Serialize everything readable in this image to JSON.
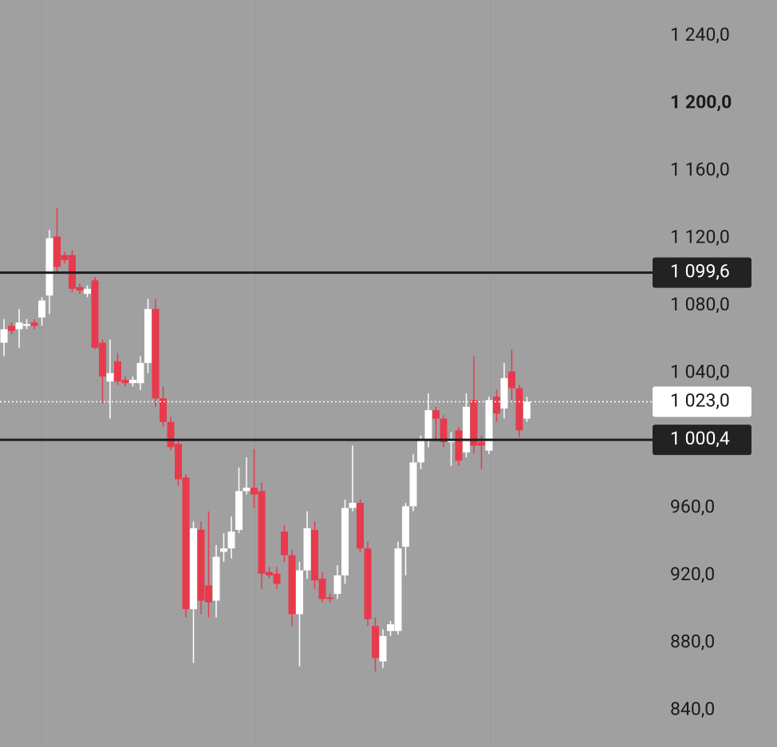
{
  "chart_data": {
    "type": "candlestick",
    "open": [
      1058,
      1068,
      1066,
      1068,
      1070,
      1073,
      1086,
      1121,
      1110,
      1110,
      1091,
      1087,
      1095,
      1058,
      1035,
      1047,
      1036,
      1034,
      1034,
      1046,
      1078,
      1025,
      1011,
      998,
      978,
      900,
      947,
      914,
      905,
      934,
      936,
      947,
      970,
      972,
      970,
      922,
      921,
      946,
      932,
      897,
      923,
      947,
      918,
      907,
      909,
      920,
      960,
      963,
      936,
      890,
      869,
      887,
      887,
      937,
      961,
      987,
      1000,
      1018,
      1013,
      999,
      1006,
      993,
      1024,
      999,
      994,
      1026,
      1019,
      1041,
      1031,
      1013
    ],
    "high": [
      1072,
      1070,
      1078,
      1072,
      1072,
      1085,
      1125,
      1138,
      1112,
      1113,
      1093,
      1092,
      1097,
      1060,
      1060,
      1052,
      1038,
      1038,
      1050,
      1084,
      1084,
      1032,
      1014,
      1000,
      980,
      952,
      952,
      958,
      938,
      945,
      955,
      984,
      990,
      995,
      975,
      925,
      925,
      950,
      935,
      928,
      958,
      952,
      922,
      909,
      926,
      965,
      997,
      965,
      940,
      895,
      888,
      893,
      940,
      963,
      992,
      1003,
      1028,
      1020,
      1015,
      1005,
      1008,
      1028,
      1050,
      1003,
      1026,
      1030,
      1046,
      1054,
      1033,
      1026
    ],
    "low": [
      1050,
      1063,
      1055,
      1066,
      1066,
      1068,
      1075,
      1100,
      1105,
      1088,
      1087,
      1085,
      1054,
      1022,
      1013,
      1033,
      1032,
      1032,
      1030,
      1040,
      1020,
      1008,
      994,
      973,
      895,
      868,
      897,
      895,
      895,
      928,
      930,
      945,
      968,
      960,
      912,
      918,
      912,
      928,
      890,
      866,
      918,
      912,
      904,
      904,
      906,
      915,
      958,
      934,
      890,
      863,
      865,
      884,
      885,
      920,
      958,
      983,
      996,
      1000,
      996,
      985,
      985,
      990,
      992,
      983,
      992,
      1011,
      1013,
      1024,
      1002,
      1011
    ],
    "close": [
      1066,
      1065,
      1070,
      1069,
      1068,
      1083,
      1120,
      1103,
      1107,
      1090,
      1089,
      1090,
      1055,
      1038,
      1040,
      1035,
      1034,
      1036,
      1046,
      1078,
      1025,
      1011,
      996,
      977,
      900,
      948,
      905,
      904,
      931,
      936,
      946,
      970,
      972,
      968,
      921,
      920,
      915,
      932,
      897,
      923,
      948,
      917,
      906,
      906,
      920,
      960,
      963,
      936,
      894,
      871,
      884,
      891,
      936,
      961,
      987,
      1001,
      1018,
      1013,
      999,
      1001,
      988,
      1020,
      997,
      997,
      1024,
      1016,
      1037,
      1031,
      1006,
      1023
    ],
    "up_color": "#ffffff",
    "down_color": "#e83a4c",
    "ylim": [
      818.2,
      1261.3
    ],
    "yticks": [
      {
        "value": 1240,
        "label": "1 240,0"
      },
      {
        "value": 1200,
        "label": "1 200,0"
      },
      {
        "value": 1160,
        "label": "1 160,0"
      },
      {
        "value": 1120,
        "label": "1 120,0"
      },
      {
        "value": 1080,
        "label": "1 080,0"
      },
      {
        "value": 1040,
        "label": "1 040,0"
      },
      {
        "value": 960,
        "label": "960,0"
      },
      {
        "value": 920,
        "label": "920,0"
      },
      {
        "value": 880,
        "label": "880,0"
      },
      {
        "value": 840,
        "label": "840,0"
      }
    ],
    "levels": [
      {
        "value": 1099.6,
        "label": "1 099,6"
      },
      {
        "value": 1000.4,
        "label": "1 000,4"
      }
    ],
    "last_price": {
      "value": 1023,
      "label": "1 023,0"
    }
  }
}
